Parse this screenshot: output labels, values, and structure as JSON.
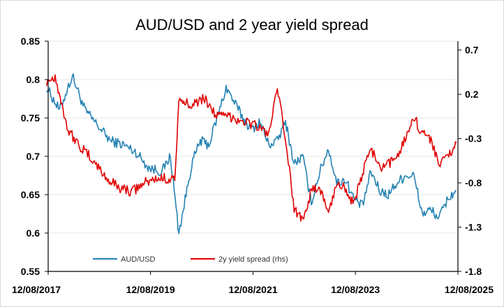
{
  "chart_data": {
    "type": "line",
    "title": "AUD/USD and 2 year yield spread",
    "xlabel": "",
    "ylabel": "",
    "x_ticks": [
      "12/08/2017",
      "12/08/2019",
      "12/08/2021",
      "12/08/2023",
      "12/08/2025"
    ],
    "xlim": [
      "2017-08-12",
      "2025-08-12"
    ],
    "y_left": {
      "lim": [
        0.55,
        0.85
      ],
      "ticks": [
        "0.85",
        "0.8",
        "0.75",
        "0.7",
        "0.65",
        "0.6",
        "0.55"
      ]
    },
    "y_right": {
      "lim": [
        -1.8,
        0.8
      ],
      "ticks": [
        "0.7",
        "0.2",
        "-0.3",
        "-0.8",
        "-1.3",
        "-1.8"
      ]
    },
    "grid": true,
    "legend_position": "bottom-left",
    "series": [
      {
        "name": "AUD/USD",
        "axis": "left",
        "color": "#2382b3",
        "x": [
          "2017-08",
          "2017-11",
          "2018-02",
          "2018-05",
          "2018-08",
          "2018-11",
          "2019-02",
          "2019-05",
          "2019-08",
          "2019-11",
          "2020-01",
          "2020-03",
          "2020-04",
          "2020-06",
          "2020-08",
          "2020-10",
          "2021-01",
          "2021-02",
          "2021-04",
          "2021-06",
          "2021-08",
          "2021-10",
          "2021-12",
          "2022-02",
          "2022-04",
          "2022-06",
          "2022-08",
          "2022-10",
          "2022-12",
          "2023-02",
          "2023-04",
          "2023-06",
          "2023-08",
          "2023-10",
          "2023-12",
          "2024-02",
          "2024-04",
          "2024-06",
          "2024-08",
          "2024-10",
          "2024-12",
          "2025-02",
          "2025-04",
          "2025-06",
          "2025-08"
        ],
        "values": [
          0.79,
          0.76,
          0.805,
          0.76,
          0.74,
          0.72,
          0.715,
          0.705,
          0.685,
          0.68,
          0.7,
          0.6,
          0.63,
          0.69,
          0.72,
          0.715,
          0.77,
          0.79,
          0.77,
          0.75,
          0.735,
          0.745,
          0.715,
          0.72,
          0.745,
          0.69,
          0.7,
          0.64,
          0.68,
          0.71,
          0.665,
          0.67,
          0.645,
          0.635,
          0.68,
          0.655,
          0.65,
          0.665,
          0.675,
          0.675,
          0.625,
          0.63,
          0.62,
          0.645,
          0.655
        ]
      },
      {
        "name": "2y yield spread (rhs)",
        "axis": "right",
        "color": "#e00000",
        "x": [
          "2017-08",
          "2017-10",
          "2018-01",
          "2018-04",
          "2018-07",
          "2018-10",
          "2019-01",
          "2019-04",
          "2019-07",
          "2019-10",
          "2020-02",
          "2020-03",
          "2020-06",
          "2020-09",
          "2020-12",
          "2021-03",
          "2021-06",
          "2021-09",
          "2021-12",
          "2022-02",
          "2022-04",
          "2022-06",
          "2022-08",
          "2022-10",
          "2022-12",
          "2023-02",
          "2023-04",
          "2023-06",
          "2023-08",
          "2023-10",
          "2023-12",
          "2024-02",
          "2024-04",
          "2024-06",
          "2024-08",
          "2024-10",
          "2024-12",
          "2025-02",
          "2025-04",
          "2025-06",
          "2025-08"
        ],
        "values": [
          0.35,
          0.4,
          -0.2,
          -0.4,
          -0.55,
          -0.75,
          -0.85,
          -0.9,
          -0.8,
          -0.75,
          -0.75,
          0.1,
          0.1,
          0.15,
          -0.05,
          -0.05,
          -0.1,
          -0.15,
          -0.25,
          0.25,
          -0.3,
          -1.1,
          -1.2,
          -0.9,
          -0.85,
          -1.15,
          -0.8,
          -0.85,
          -1.05,
          -0.7,
          -0.4,
          -0.65,
          -0.6,
          -0.5,
          -0.3,
          -0.05,
          -0.25,
          -0.3,
          -0.6,
          -0.5,
          -0.35
        ]
      }
    ]
  }
}
